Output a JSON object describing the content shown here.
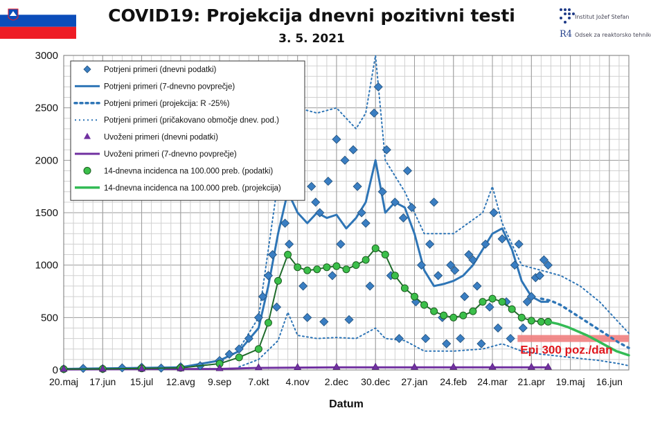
{
  "header": {
    "title": "COVID19: Projekcija dnevni pozitivni testi",
    "subtitle": "3. 5. 2021",
    "logo": {
      "line1": "Institut Jožef Stefan",
      "line2": "Odsek za reaktorsko tehniko",
      "mark": "R4"
    }
  },
  "colors": {
    "primary": "#2e75b6",
    "diamond": "#3a7ec2",
    "imported": "#7030a0",
    "incidence": "#3bbf4a",
    "incidence_projection": "#33bb55",
    "threshold": "#f08080",
    "annotation": "#e0161c"
  },
  "chart_data": {
    "type": "line",
    "title": "COVID19: Projekcija dnevni pozitivni testi",
    "subtitle": "3. 5. 2021",
    "xlabel": "Datum",
    "ylabel": "",
    "ylim": [
      0,
      3000
    ],
    "yticks": [
      0,
      500,
      1000,
      1500,
      2000,
      2500,
      3000
    ],
    "x_start": "2020-05-20",
    "x_end": "2021-06-30",
    "xtick_labels": [
      "20.maj",
      "17.jun",
      "15.jul",
      "12.avg",
      "9.sep",
      "7.okt",
      "4.nov",
      "2.dec",
      "30.dec",
      "27.jan",
      "24.feb",
      "24.mar",
      "21.apr",
      "19.maj",
      "16.jun"
    ],
    "grid": true,
    "legend_position": "top-left",
    "legend": [
      "Potrjeni primeri (dnevni podatki)",
      "Potrjeni primeri (7-dnevno povprečje)",
      "Potrjeni primeri (projekcija: R -25%)",
      "Potrjeni primeri (pričakovano območje dnev. pod.)",
      "Uvoženi primeri (dnevni podatki)",
      "Uvoženi primeri (7-dnevno povprečje)",
      "14-dnevna incidenca na 100.000 preb. (podatki)",
      "14-dnevna incidenca na 100.000 preb. (projekcija)"
    ],
    "annotation": {
      "text": "Epi 300 poz./dan",
      "y": 300
    },
    "series": [
      {
        "name": "Potrjeni primeri (7-dnevno povprečje)",
        "x": [
          "2020-05-20",
          "2020-06-17",
          "2020-07-15",
          "2020-08-12",
          "2020-09-09",
          "2020-09-23",
          "2020-10-07",
          "2020-10-14",
          "2020-10-21",
          "2020-10-28",
          "2020-11-04",
          "2020-11-11",
          "2020-11-18",
          "2020-11-25",
          "2020-12-02",
          "2020-12-09",
          "2020-12-16",
          "2020-12-23",
          "2020-12-30",
          "2021-01-06",
          "2021-01-13",
          "2021-01-20",
          "2021-01-27",
          "2021-02-03",
          "2021-02-10",
          "2021-02-17",
          "2021-02-24",
          "2021-03-03",
          "2021-03-10",
          "2021-03-17",
          "2021-03-24",
          "2021-03-31",
          "2021-04-07",
          "2021-04-14",
          "2021-04-21",
          "2021-04-28",
          "2021-05-03"
        ],
        "y": [
          10,
          15,
          20,
          25,
          90,
          180,
          400,
          800,
          1300,
          1700,
          1500,
          1400,
          1500,
          1450,
          1480,
          1350,
          1450,
          1600,
          2000,
          1500,
          1600,
          1550,
          1300,
          950,
          800,
          820,
          850,
          900,
          1000,
          1150,
          1300,
          1350,
          1150,
          850,
          700,
          650,
          650
        ]
      },
      {
        "name": "Potrjeni primeri (projekcija: R -25%)",
        "x": [
          "2021-04-28",
          "2021-05-05",
          "2021-05-12",
          "2021-05-19",
          "2021-05-26",
          "2021-06-02",
          "2021-06-09",
          "2021-06-16",
          "2021-06-23",
          "2021-06-30"
        ],
        "y": [
          680,
          660,
          620,
          560,
          500,
          440,
          380,
          320,
          260,
          210
        ]
      },
      {
        "name": "Potrjeni primeri (pričakovano območje dnev. pod.) zgornja meja",
        "x": [
          "2020-09-23",
          "2020-10-07",
          "2020-10-21",
          "2020-10-28",
          "2020-11-04",
          "2020-11-18",
          "2020-12-02",
          "2020-12-16",
          "2020-12-23",
          "2020-12-30",
          "2021-01-06",
          "2021-01-20",
          "2021-02-03",
          "2021-02-24",
          "2021-03-17",
          "2021-03-24",
          "2021-03-31",
          "2021-04-14",
          "2021-04-28",
          "2021-05-12",
          "2021-05-26",
          "2021-06-09",
          "2021-06-23",
          "2021-06-30"
        ],
        "y": [
          200,
          500,
          1800,
          2600,
          2500,
          2450,
          2500,
          2300,
          2450,
          3000,
          2000,
          1700,
          1300,
          1300,
          1500,
          1750,
          1400,
          1000,
          950,
          900,
          800,
          650,
          450,
          350
        ]
      },
      {
        "name": "Potrjeni primeri (pričakovano območje dnev. pod.) spodnja meja",
        "x": [
          "2020-09-23",
          "2020-10-07",
          "2020-10-21",
          "2020-10-28",
          "2020-11-04",
          "2020-11-18",
          "2020-12-02",
          "2020-12-16",
          "2020-12-30",
          "2021-01-06",
          "2021-01-20",
          "2021-02-03",
          "2021-02-24",
          "2021-03-17",
          "2021-03-31",
          "2021-04-14",
          "2021-04-28",
          "2021-05-12",
          "2021-05-26",
          "2021-06-09",
          "2021-06-23",
          "2021-06-30"
        ],
        "y": [
          30,
          100,
          280,
          550,
          330,
          300,
          310,
          300,
          400,
          300,
          280,
          180,
          180,
          200,
          250,
          180,
          150,
          130,
          110,
          90,
          60,
          40
        ]
      },
      {
        "name": "Uvoženi primeri (7-dnevno povprečje)",
        "x": [
          "2020-05-20",
          "2020-07-15",
          "2020-09-09",
          "2020-10-07",
          "2020-12-02",
          "2021-02-03",
          "2021-04-07",
          "2021-05-03"
        ],
        "y": [
          5,
          8,
          10,
          20,
          25,
          25,
          25,
          25
        ]
      },
      {
        "name": "14-dnevna incidenca na 100.000 preb. (podatki)",
        "x": [
          "2020-05-20",
          "2020-06-17",
          "2020-07-15",
          "2020-08-12",
          "2020-09-09",
          "2020-09-23",
          "2020-10-07",
          "2020-10-14",
          "2020-10-21",
          "2020-10-28",
          "2020-11-04",
          "2020-11-11",
          "2020-11-18",
          "2020-11-25",
          "2020-12-02",
          "2020-12-09",
          "2020-12-16",
          "2020-12-23",
          "2020-12-30",
          "2021-01-06",
          "2021-01-13",
          "2021-01-20",
          "2021-01-27",
          "2021-02-03",
          "2021-02-10",
          "2021-02-17",
          "2021-02-24",
          "2021-03-03",
          "2021-03-10",
          "2021-03-17",
          "2021-03-24",
          "2021-03-31",
          "2021-04-07",
          "2021-04-14",
          "2021-04-21",
          "2021-04-28",
          "2021-05-03"
        ],
        "y": [
          8,
          10,
          15,
          20,
          60,
          120,
          200,
          450,
          850,
          1100,
          980,
          950,
          960,
          980,
          990,
          960,
          1000,
          1050,
          1160,
          1100,
          900,
          780,
          700,
          620,
          560,
          520,
          500,
          520,
          560,
          650,
          680,
          650,
          580,
          500,
          470,
          460,
          460
        ]
      },
      {
        "name": "14-dnevna incidenca na 100.000 preb. (projekcija)",
        "x": [
          "2021-05-03",
          "2021-05-10",
          "2021-05-17",
          "2021-05-24",
          "2021-05-31",
          "2021-06-07",
          "2021-06-14",
          "2021-06-21",
          "2021-06-30"
        ],
        "y": [
          460,
          440,
          410,
          370,
          330,
          280,
          230,
          180,
          140
        ]
      },
      {
        "name": "Potrjeni primeri (dnevni podatki)",
        "x": [
          "2020-05-20",
          "2020-06-03",
          "2020-06-17",
          "2020-07-01",
          "2020-07-15",
          "2020-07-29",
          "2020-08-12",
          "2020-08-26",
          "2020-09-09",
          "2020-09-16",
          "2020-09-23",
          "2020-09-30",
          "2020-10-07",
          "2020-10-10",
          "2020-10-14",
          "2020-10-17",
          "2020-10-20",
          "2020-10-23",
          "2020-10-26",
          "2020-10-29",
          "2020-11-02",
          "2020-11-05",
          "2020-11-08",
          "2020-11-11",
          "2020-11-14",
          "2020-11-17",
          "2020-11-20",
          "2020-11-23",
          "2020-11-26",
          "2020-11-29",
          "2020-12-02",
          "2020-12-05",
          "2020-12-08",
          "2020-12-11",
          "2020-12-14",
          "2020-12-17",
          "2020-12-20",
          "2020-12-23",
          "2020-12-26",
          "2020-12-29",
          "2021-01-01",
          "2021-01-04",
          "2021-01-07",
          "2021-01-10",
          "2021-01-13",
          "2021-01-16",
          "2021-01-19",
          "2021-01-22",
          "2021-01-25",
          "2021-01-28",
          "2021-02-01",
          "2021-02-04",
          "2021-02-07",
          "2021-02-10",
          "2021-02-13",
          "2021-02-16",
          "2021-02-19",
          "2021-02-22",
          "2021-02-25",
          "2021-03-01",
          "2021-03-04",
          "2021-03-07",
          "2021-03-10",
          "2021-03-13",
          "2021-03-16",
          "2021-03-19",
          "2021-03-22",
          "2021-03-25",
          "2021-03-28",
          "2021-03-31",
          "2021-04-03",
          "2021-04-06",
          "2021-04-09",
          "2021-04-12",
          "2021-04-15",
          "2021-04-18",
          "2021-04-21",
          "2021-04-24",
          "2021-04-27",
          "2021-04-30",
          "2021-05-03"
        ],
        "y": [
          10,
          15,
          12,
          20,
          25,
          18,
          30,
          40,
          90,
          150,
          200,
          300,
          500,
          700,
          900,
          1100,
          600,
          1700,
          1400,
          1200,
          2600,
          1900,
          800,
          500,
          1750,
          1600,
          1500,
          460,
          1800,
          900,
          2200,
          1200,
          2000,
          480,
          2100,
          1750,
          1500,
          1400,
          800,
          2450,
          2700,
          1700,
          2100,
          900,
          1600,
          300,
          1450,
          1900,
          1550,
          650,
          1000,
          300,
          1200,
          1600,
          900,
          500,
          250,
          1000,
          950,
          300,
          700,
          1100,
          1050,
          800,
          250,
          1200,
          600,
          1500,
          400,
          1250,
          650,
          300,
          1000,
          1200,
          400,
          650,
          700,
          880,
          900,
          1050,
          1000
        ]
      },
      {
        "name": "Uvoženi primeri (dnevni podatki)",
        "x": [
          "2020-05-20",
          "2020-06-17",
          "2020-07-15",
          "2020-08-12",
          "2020-09-09",
          "2020-10-07",
          "2020-11-04",
          "2020-12-02",
          "2020-12-30",
          "2021-01-27",
          "2021-02-24",
          "2021-03-24",
          "2021-04-21",
          "2021-05-03"
        ],
        "y": [
          5,
          6,
          8,
          10,
          12,
          20,
          22,
          25,
          25,
          24,
          25,
          26,
          25,
          25
        ]
      }
    ]
  }
}
